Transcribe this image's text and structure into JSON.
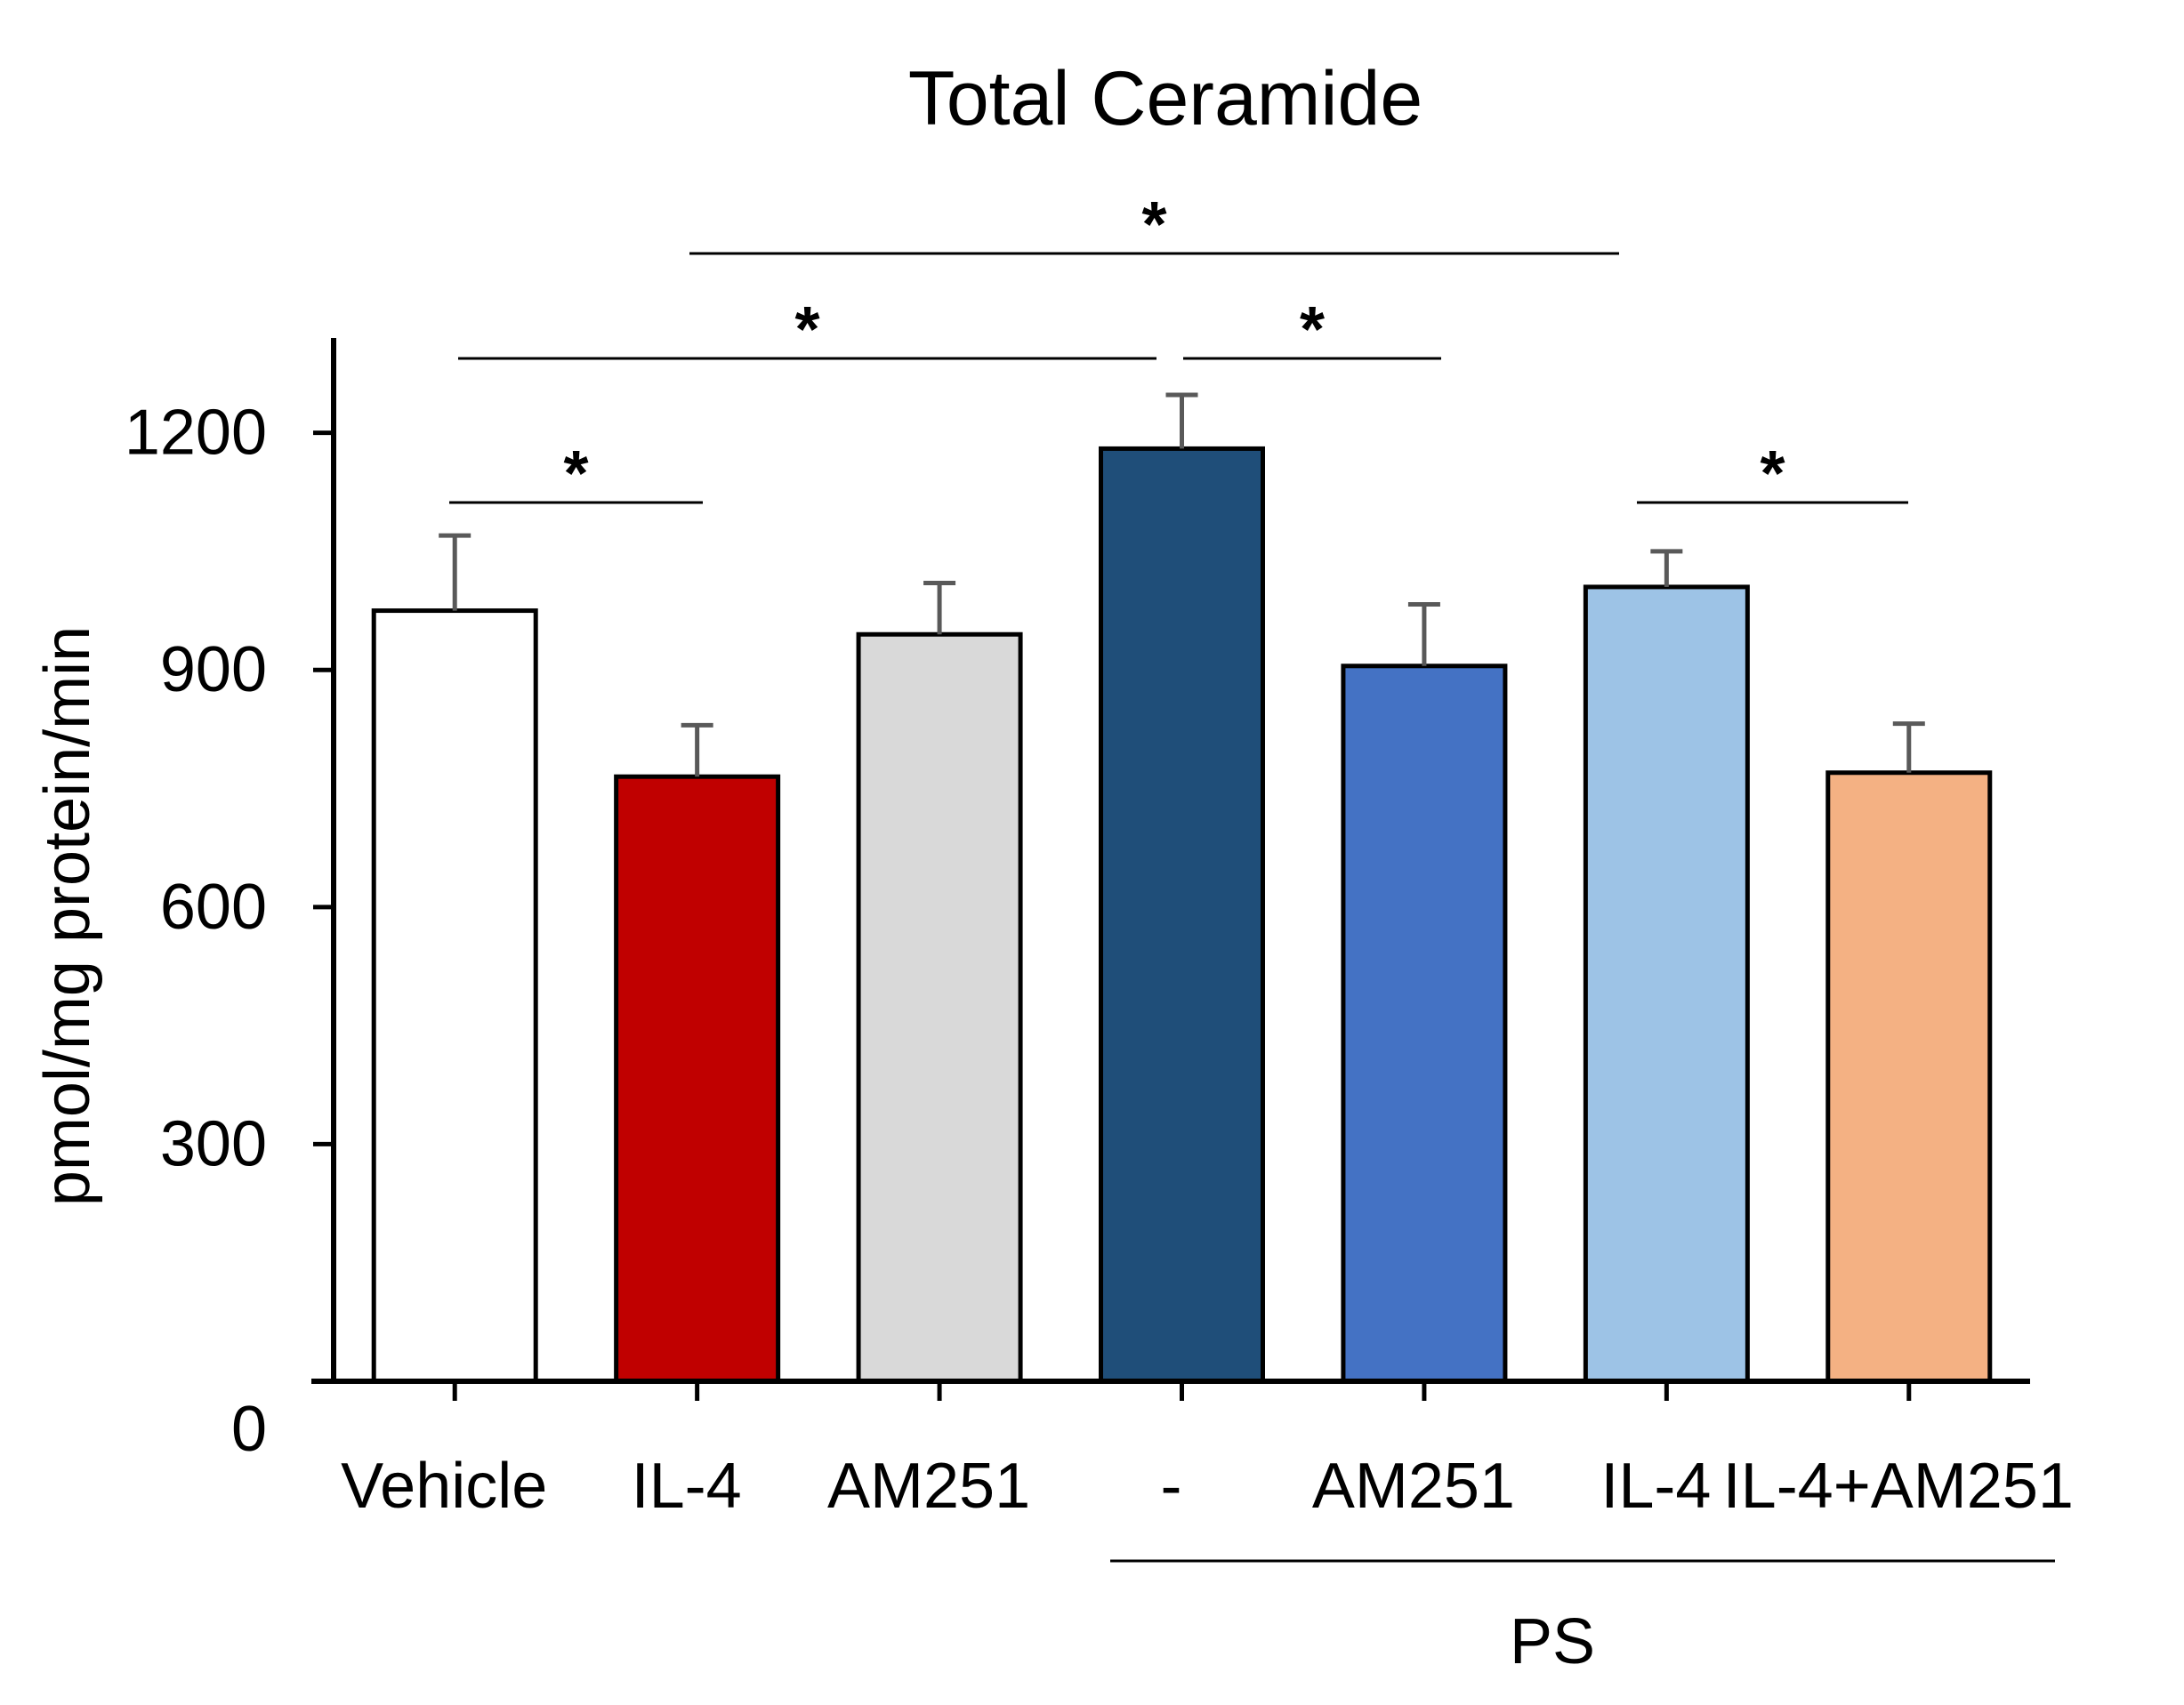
{
  "chart_data": {
    "type": "bar",
    "title": "Total Ceramide",
    "ylabel": "pmol/mg protein/min",
    "xlabel": "",
    "ylim": [
      0,
      1320
    ],
    "yticks": [
      0,
      300,
      600,
      900,
      1200
    ],
    "categories": [
      "Vehicle",
      "IL-4",
      "AM251",
      "-",
      "AM251",
      "IL-4",
      "IL-4+AM251"
    ],
    "values": [
      975,
      765,
      945,
      1180,
      905,
      1005,
      770
    ],
    "errors": [
      95,
      65,
      65,
      68,
      78,
      45,
      62
    ],
    "colors": [
      "#ffffff",
      "#c00000",
      "#d9d9d9",
      "#1f4e79",
      "#4472c4",
      "#9dc3e6",
      "#f4b183"
    ],
    "group_label": {
      "text": "PS",
      "from": 3,
      "to": 6
    },
    "significance": [
      {
        "from": 0,
        "to": 1,
        "label": "*"
      },
      {
        "from": 0,
        "to": 3,
        "label": "*"
      },
      {
        "from": 3,
        "to": 4,
        "label": "*"
      },
      {
        "from": 1,
        "to": 5,
        "label": "*"
      },
      {
        "from": 5,
        "to": 6,
        "label": "*"
      }
    ]
  }
}
